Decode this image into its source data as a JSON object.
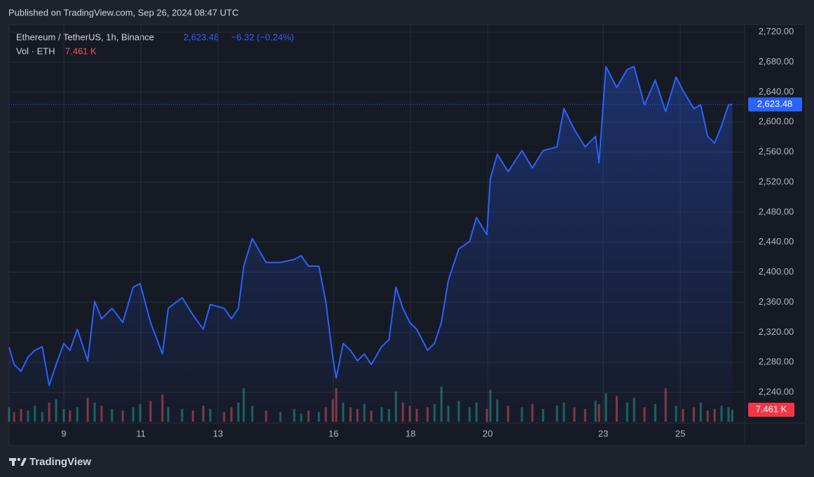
{
  "header": "Published on TradingView.com, Sep 26, 2024 08:47 UTC",
  "footer": "TradingView",
  "chart_data": {
    "type": "area",
    "title": "Ethereum / TetherUS, 1h, Binance",
    "change": "−6.32 (−0.24%)",
    "last_price": {
      "value": 2623.48,
      "label": "2,623.48"
    },
    "x": [
      7.58,
      7.71,
      7.89,
      8.07,
      8.25,
      8.44,
      8.62,
      8.8,
      9,
      9.16,
      9.35,
      9.62,
      9.8,
      9.98,
      10.25,
      10.53,
      10.8,
      10.98,
      11.25,
      11.56,
      11.71,
      12.07,
      12.35,
      12.62,
      12.8,
      13.16,
      13.35,
      13.53,
      13.67,
      13.89,
      14.25,
      14.62,
      14.98,
      15.16,
      15.35,
      15.62,
      15.8,
      15.98,
      16.07,
      16.25,
      16.44,
      16.62,
      16.8,
      16.98,
      17.25,
      17.44,
      17.62,
      17.8,
      17.98,
      18.16,
      18.44,
      18.62,
      18.8,
      18.98,
      19.25,
      19.53,
      19.71,
      19.98,
      20.07,
      20.25,
      20.53,
      20.89,
      21.16,
      21.44,
      21.8,
      21.98,
      22.25,
      22.53,
      22.8,
      22.89,
      23.07,
      23.35,
      23.62,
      23.8,
      24.07,
      24.35,
      24.62,
      24.89,
      25.07,
      25.35,
      25.53,
      25.71,
      25.89,
      26.07,
      26.25,
      26.35
    ],
    "series": [
      {
        "color": "#2962ff",
        "values": [
          2300,
          2277,
          2268,
          2287,
          2296,
          2301,
          2249,
          2277,
          2305,
          2296,
          2324,
          2282,
          2361,
          2338,
          2352,
          2333,
          2380,
          2385,
          2333,
          2291,
          2352,
          2366,
          2343,
          2324,
          2357,
          2352,
          2338,
          2352,
          2408,
          2445,
          2413,
          2413,
          2417,
          2422,
          2408,
          2408,
          2361,
          2287,
          2259,
          2305,
          2296,
          2282,
          2291,
          2277,
          2301,
          2310,
          2380,
          2352,
          2333,
          2324,
          2296,
          2305,
          2333,
          2389,
          2431,
          2441,
          2473,
          2450,
          2525,
          2557,
          2534,
          2562,
          2539,
          2562,
          2567,
          2618,
          2590,
          2567,
          2581,
          2546,
          2674,
          2646,
          2670,
          2674,
          2623,
          2656,
          2614,
          2660,
          2642,
          2618,
          2623,
          2581,
          2572,
          2595,
          2623,
          2623.48
        ]
      }
    ],
    "volume": {
      "name": "Vol · ETH",
      "last": {
        "value": 7.461,
        "label": "7.461 K"
      },
      "up_color": "#22ab94",
      "down_color": "#f7525f",
      "ylim": [
        0,
        250
      ],
      "values": [
        9,
        6,
        8,
        7,
        10,
        6,
        12,
        14,
        8,
        7,
        9,
        15,
        12,
        10,
        8,
        7,
        9,
        11,
        13,
        17,
        9,
        8,
        7,
        10,
        8,
        6,
        9,
        12,
        21,
        10,
        7,
        6,
        8,
        5,
        7,
        6,
        9,
        14,
        21,
        12,
        9,
        8,
        11,
        7,
        9,
        8,
        19,
        12,
        10,
        8,
        9,
        11,
        22,
        10,
        13,
        9,
        12,
        8,
        20,
        14,
        10,
        9,
        11,
        8,
        10,
        12,
        9,
        8,
        13,
        11,
        18,
        16,
        12,
        15,
        9,
        11,
        21,
        10,
        8,
        9,
        12,
        7,
        8,
        10,
        9,
        7.461
      ]
    },
    "xlim": [
      7.58,
      26.67
    ],
    "xticks": [
      9,
      11,
      13,
      16,
      18,
      20,
      23,
      25
    ],
    "ylim": [
      2199,
      2730
    ],
    "yticks": [
      {
        "value": 2240,
        "label": "2,240.00"
      },
      {
        "value": 2280,
        "label": "2,280.00"
      },
      {
        "value": 2320,
        "label": "2,320.00"
      },
      {
        "value": 2360,
        "label": "2,360.00"
      },
      {
        "value": 2400,
        "label": "2,400.00"
      },
      {
        "value": 2440,
        "label": "2,440.00"
      },
      {
        "value": 2480,
        "label": "2,480.00"
      },
      {
        "value": 2520,
        "label": "2,520.00"
      },
      {
        "value": 2560,
        "label": "2,560.00"
      },
      {
        "value": 2600,
        "label": "2,600.00"
      },
      {
        "value": 2640,
        "label": "2,640.00"
      },
      {
        "value": 2680,
        "label": "2,680.00"
      },
      {
        "value": 2720,
        "label": "2,720.00"
      }
    ],
    "grid": true
  }
}
